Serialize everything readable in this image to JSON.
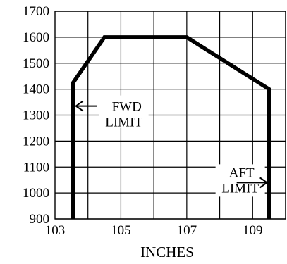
{
  "chart_data": {
    "type": "line",
    "title": "",
    "xlabel": "INCHES",
    "ylabel": "",
    "xlim": [
      103,
      110
    ],
    "ylim": [
      900,
      1700
    ],
    "x_ticks": [
      {
        "value": 103,
        "label": "103"
      },
      {
        "value": 105,
        "label": "105"
      },
      {
        "value": 107,
        "label": "107"
      },
      {
        "value": 109,
        "label": "109"
      }
    ],
    "x_grid": [
      104,
      105,
      106,
      107,
      108,
      109,
      110
    ],
    "y_ticks": [
      {
        "value": 900,
        "label": "900"
      },
      {
        "value": 1000,
        "label": "1000"
      },
      {
        "value": 1100,
        "label": "1100"
      },
      {
        "value": 1200,
        "label": "1200"
      },
      {
        "value": 1300,
        "label": "1300"
      },
      {
        "value": 1400,
        "label": "1400"
      },
      {
        "value": 1500,
        "label": "1500"
      },
      {
        "value": 1600,
        "label": "1600"
      },
      {
        "value": 1700,
        "label": "1700"
      }
    ],
    "grid": true,
    "series": [
      {
        "x": [
          103.55,
          103.55,
          104.5,
          107.0,
          109.5,
          109.5
        ],
        "y": [
          900,
          1425,
          1600,
          1600,
          1400,
          900
        ]
      }
    ],
    "annotations": [
      {
        "lines": [
          "FWD",
          "LIMIT"
        ],
        "x": 103.55,
        "y": 1335,
        "arrow": "left"
      },
      {
        "lines": [
          "AFT",
          "LIMIT"
        ],
        "x": 109.5,
        "y": 1040,
        "arrow": "right"
      }
    ],
    "colors": {
      "line": "#000000",
      "grid": "#000000",
      "background": "#ffffff"
    }
  }
}
